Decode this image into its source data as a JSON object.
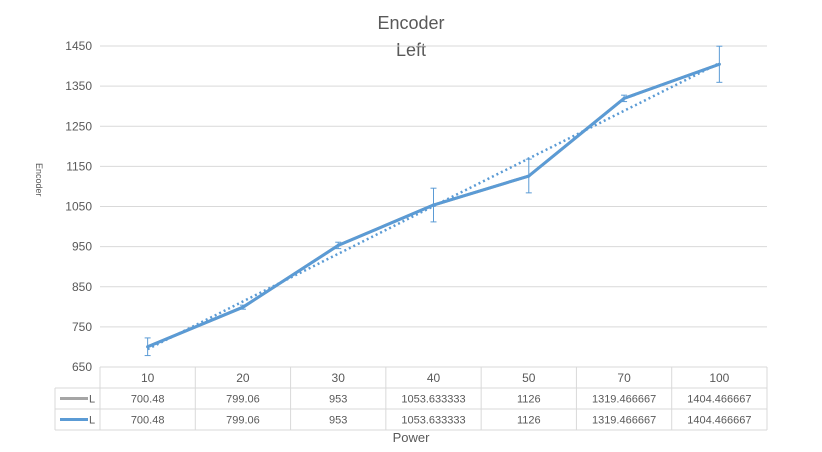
{
  "chart_data": {
    "type": "line",
    "title": "Encoder",
    "subtitle": "Left",
    "xlabel": "Power",
    "ylabel": "Encoder",
    "categories": [
      "10",
      "20",
      "30",
      "40",
      "50",
      "70",
      "100"
    ],
    "series": [
      {
        "name": "L",
        "values": [
          700.48,
          799.06,
          953,
          1053.633333,
          1126,
          1319.466667,
          1404.466667
        ],
        "color": "#a5a5a5"
      },
      {
        "name": "L",
        "values": [
          700.48,
          799.06,
          953,
          1053.633333,
          1126,
          1319.466667,
          1404.466667
        ],
        "color": "#5b9bd5",
        "error_bars": [
          22,
          5,
          8,
          42,
          42,
          8,
          45
        ]
      }
    ],
    "table_values": [
      [
        "700.48",
        "799.06",
        "953",
        "1053.633333",
        "1126",
        "1319.466667",
        "1404.466667"
      ],
      [
        "700.48",
        "799.06",
        "953",
        "1053.633333",
        "1126",
        "1319.466667",
        "1404.466667"
      ]
    ],
    "trendline": {
      "type": "linear",
      "style": "dotted",
      "color": "#5b9bd5"
    },
    "ylim": [
      650,
      1450
    ],
    "yticks": [
      "650",
      "750",
      "850",
      "950",
      "1050",
      "1150",
      "1250",
      "1350",
      "1450"
    ],
    "grid": true,
    "legend": "data-table"
  }
}
